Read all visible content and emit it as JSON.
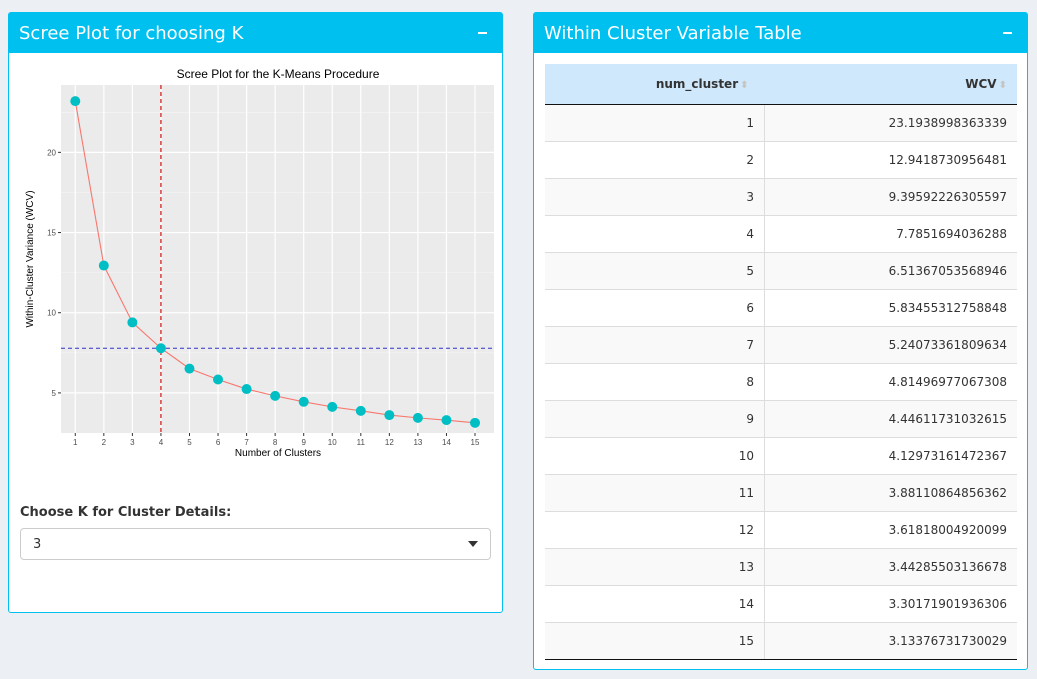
{
  "left_panel": {
    "title": "Scree Plot for choosing K",
    "select_label": "Choose K for Cluster Details:",
    "select_value": "3"
  },
  "right_panel": {
    "title": "Within Cluster Variable Table",
    "columns": [
      "num_cluster",
      "WCV"
    ],
    "rows": [
      [
        "1",
        "23.1938998363339"
      ],
      [
        "2",
        "12.9418730956481"
      ],
      [
        "3",
        "9.39592226305597"
      ],
      [
        "4",
        "7.7851694036288"
      ],
      [
        "5",
        "6.51367053568946"
      ],
      [
        "6",
        "5.83455312758848"
      ],
      [
        "7",
        "5.24073361809634"
      ],
      [
        "8",
        "4.81496977067308"
      ],
      [
        "9",
        "4.44611731032615"
      ],
      [
        "10",
        "4.12973161472367"
      ],
      [
        "11",
        "3.88110864856362"
      ],
      [
        "12",
        "3.61818004920099"
      ],
      [
        "13",
        "3.44285503136678"
      ],
      [
        "14",
        "3.30171901936306"
      ],
      [
        "15",
        "3.13376731730029"
      ]
    ]
  },
  "chart_data": {
    "type": "line",
    "title": "Scree Plot for the K-Means Procedure",
    "xlabel": "Number of Clusters",
    "ylabel": "Within-Cluster Variance (WCV)",
    "x": [
      1,
      2,
      3,
      4,
      5,
      6,
      7,
      8,
      9,
      10,
      11,
      12,
      13,
      14,
      15
    ],
    "values": [
      23.1939,
      12.9419,
      9.3959,
      7.7852,
      6.5137,
      5.8346,
      5.2407,
      4.815,
      4.4461,
      4.1297,
      3.8811,
      3.6182,
      3.4429,
      3.3017,
      3.1338
    ],
    "xlim": [
      0.5,
      15.7
    ],
    "ylim": [
      2.5,
      24.2
    ],
    "xticks": [
      1,
      2,
      3,
      4,
      5,
      6,
      7,
      8,
      9,
      10,
      11,
      12,
      13,
      14,
      15
    ],
    "yticks": [
      5,
      10,
      15,
      20
    ],
    "vline_x": 4,
    "hline_y": 7.7852,
    "grid": true,
    "colors": {
      "panel_bg": "#ebebeb",
      "line": "#f8766d",
      "points": "#00bfc4",
      "vline": "#cc0000",
      "hline": "#3333cc"
    }
  }
}
